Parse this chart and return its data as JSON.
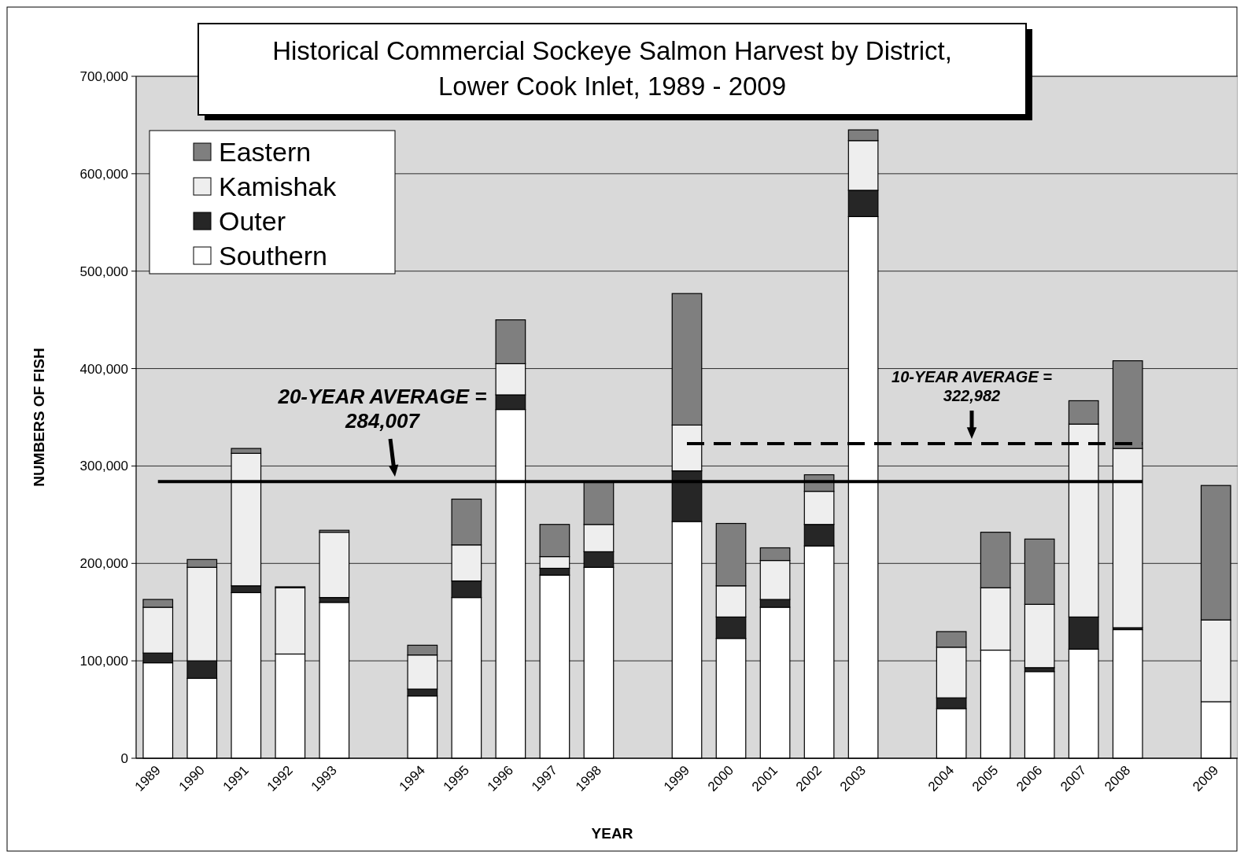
{
  "chart_data": {
    "type": "bar",
    "stacked": true,
    "title": "Historical Commercial Sockeye Salmon Harvest by District,\nLower Cook Inlet, 1989 - 2009",
    "xlabel": "YEAR",
    "ylabel": "NUMBERS OF FISH",
    "categories": [
      "1989",
      "1990",
      "1991",
      "1992",
      "1993",
      null,
      "1994",
      "1995",
      "1996",
      "1997",
      "1998",
      null,
      "1999",
      "2000",
      "2001",
      "2002",
      "2003",
      null,
      "2004",
      "2005",
      "2006",
      "2007",
      "2008",
      null,
      "2009"
    ],
    "series": [
      {
        "name": "Southern",
        "color": "#ffffff",
        "values": [
          98000,
          82000,
          170000,
          107000,
          160000,
          null,
          64000,
          165000,
          358000,
          188000,
          196000,
          null,
          243000,
          123000,
          155000,
          218000,
          556000,
          null,
          51000,
          111000,
          89000,
          112000,
          132000,
          null,
          58000
        ]
      },
      {
        "name": "Outer",
        "color": "#262626",
        "values": [
          10000,
          18000,
          7000,
          null,
          5000,
          null,
          7000,
          17000,
          15000,
          7000,
          16000,
          null,
          52000,
          22000,
          8000,
          22000,
          27000,
          null,
          11000,
          null,
          4000,
          33000,
          2000,
          null,
          null
        ]
      },
      {
        "name": "Kamishak",
        "color": "#eeeeee",
        "values": [
          47000,
          96000,
          136000,
          68000,
          67000,
          null,
          35000,
          37000,
          32000,
          12000,
          28000,
          null,
          47000,
          32000,
          40000,
          34000,
          51000,
          null,
          52000,
          64000,
          65000,
          198000,
          184000,
          null,
          84000
        ]
      },
      {
        "name": "Eastern",
        "color": "#7f7f7f",
        "values": [
          8000,
          8000,
          5000,
          1000,
          2000,
          null,
          10000,
          47000,
          45000,
          33000,
          43000,
          null,
          135000,
          64000,
          13000,
          17000,
          11000,
          null,
          16000,
          57000,
          67000,
          24000,
          90000,
          null,
          138000
        ]
      }
    ],
    "ylim": [
      0,
      700000
    ],
    "yticks": [
      {
        "value": 0,
        "label": "0"
      },
      {
        "value": 100000,
        "label": "100,000"
      },
      {
        "value": 200000,
        "label": "200,000"
      },
      {
        "value": 300000,
        "label": "300,000"
      },
      {
        "value": 400000,
        "label": "400,000"
      },
      {
        "value": 500000,
        "label": "500,000"
      },
      {
        "value": 600000,
        "label": "600,000"
      },
      {
        "value": 700000,
        "label": "700,000"
      }
    ],
    "grid": "y",
    "legend": "top left",
    "ref_lines": [
      {
        "axis": "y",
        "value": 284007,
        "label": "20-YEAR AVERAGE =\n284,007",
        "line_style": "solid"
      },
      {
        "axis": "y",
        "value": 322982,
        "label": "10-YEAR AVERAGE  =\n322,982",
        "line_style": "dashed"
      }
    ]
  }
}
